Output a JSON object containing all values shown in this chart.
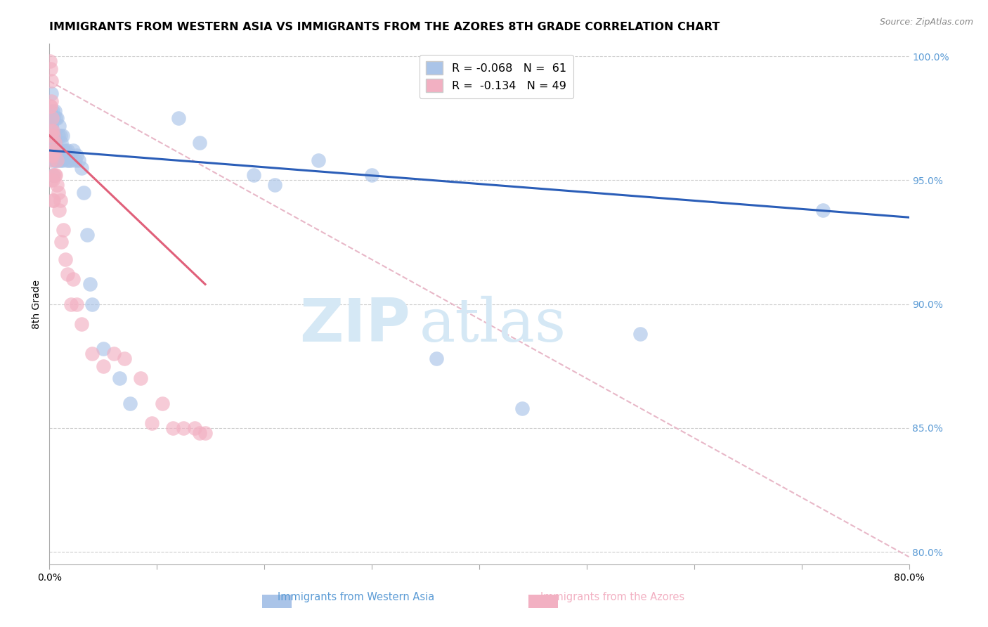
{
  "title": "IMMIGRANTS FROM WESTERN ASIA VS IMMIGRANTS FROM THE AZORES 8TH GRADE CORRELATION CHART",
  "source": "Source: ZipAtlas.com",
  "ylabel": "8th Grade",
  "legend_blue": "R = -0.068   N =  61",
  "legend_pink": "R =  -0.134   N = 49",
  "xlim": [
    0.0,
    0.8
  ],
  "ylim": [
    0.795,
    1.005
  ],
  "y_ticks": [
    0.8,
    0.85,
    0.9,
    0.95,
    1.0
  ],
  "y_tick_labels": [
    "80.0%",
    "85.0%",
    "90.0%",
    "95.0%",
    "100.0%"
  ],
  "blue_scatter_x": [
    0.0008,
    0.001,
    0.001,
    0.0015,
    0.002,
    0.002,
    0.002,
    0.003,
    0.003,
    0.003,
    0.003,
    0.004,
    0.004,
    0.004,
    0.005,
    0.005,
    0.005,
    0.006,
    0.006,
    0.006,
    0.007,
    0.007,
    0.008,
    0.008,
    0.009,
    0.009,
    0.01,
    0.01,
    0.011,
    0.012,
    0.012,
    0.013,
    0.014,
    0.015,
    0.016,
    0.017,
    0.018,
    0.019,
    0.02,
    0.022,
    0.024,
    0.025,
    0.027,
    0.03,
    0.032,
    0.035,
    0.038,
    0.04,
    0.05,
    0.065,
    0.075,
    0.12,
    0.14,
    0.19,
    0.21,
    0.25,
    0.3,
    0.36,
    0.44,
    0.55,
    0.72
  ],
  "blue_scatter_y": [
    0.975,
    0.978,
    0.968,
    0.972,
    0.985,
    0.972,
    0.962,
    0.978,
    0.968,
    0.96,
    0.952,
    0.975,
    0.965,
    0.958,
    0.978,
    0.968,
    0.958,
    0.975,
    0.965,
    0.958,
    0.975,
    0.962,
    0.968,
    0.958,
    0.972,
    0.962,
    0.968,
    0.958,
    0.965,
    0.968,
    0.958,
    0.962,
    0.96,
    0.962,
    0.958,
    0.962,
    0.958,
    0.96,
    0.958,
    0.962,
    0.958,
    0.96,
    0.958,
    0.955,
    0.945,
    0.928,
    0.908,
    0.9,
    0.882,
    0.87,
    0.86,
    0.975,
    0.965,
    0.952,
    0.948,
    0.958,
    0.952,
    0.878,
    0.858,
    0.888,
    0.938
  ],
  "pink_scatter_x": [
    0.0005,
    0.0005,
    0.001,
    0.001,
    0.001,
    0.0012,
    0.0015,
    0.002,
    0.002,
    0.002,
    0.002,
    0.0025,
    0.003,
    0.003,
    0.003,
    0.003,
    0.0035,
    0.004,
    0.004,
    0.004,
    0.005,
    0.005,
    0.006,
    0.006,
    0.007,
    0.007,
    0.008,
    0.009,
    0.01,
    0.011,
    0.013,
    0.015,
    0.017,
    0.02,
    0.022,
    0.025,
    0.03,
    0.04,
    0.05,
    0.06,
    0.07,
    0.085,
    0.095,
    0.105,
    0.115,
    0.125,
    0.135,
    0.14,
    0.145
  ],
  "pink_scatter_y": [
    0.998,
    0.98,
    0.995,
    0.98,
    0.968,
    0.958,
    0.99,
    0.982,
    0.97,
    0.96,
    0.95,
    0.975,
    0.97,
    0.96,
    0.95,
    0.942,
    0.968,
    0.962,
    0.952,
    0.942,
    0.965,
    0.952,
    0.962,
    0.952,
    0.958,
    0.948,
    0.945,
    0.938,
    0.942,
    0.925,
    0.93,
    0.918,
    0.912,
    0.9,
    0.91,
    0.9,
    0.892,
    0.88,
    0.875,
    0.88,
    0.878,
    0.87,
    0.852,
    0.86,
    0.85,
    0.85,
    0.85,
    0.848,
    0.848
  ],
  "blue_line_x0": 0.0,
  "blue_line_x1": 0.8,
  "blue_line_y0": 0.962,
  "blue_line_y1": 0.935,
  "pink_line_x0": 0.0,
  "pink_line_x1": 0.145,
  "pink_line_y0": 0.968,
  "pink_line_y1": 0.908,
  "dashed_line_x0": 0.0,
  "dashed_line_x1": 0.8,
  "dashed_line_y0": 0.99,
  "dashed_line_y1": 0.798,
  "blue_dot_color": "#aac4e8",
  "blue_line_color": "#2b5eb8",
  "pink_dot_color": "#f2b0c2",
  "pink_line_color": "#e0607a",
  "dashed_line_color": "#e8b8c8",
  "grid_color": "#cccccc",
  "background_color": "#ffffff",
  "title_fontsize": 11.5,
  "axis_label_fontsize": 10,
  "tick_fontsize": 10,
  "right_tick_color": "#5b9bd5",
  "watermark_zip": "ZIP",
  "watermark_atlas": "atlas",
  "watermark_color": "#d5e8f5"
}
